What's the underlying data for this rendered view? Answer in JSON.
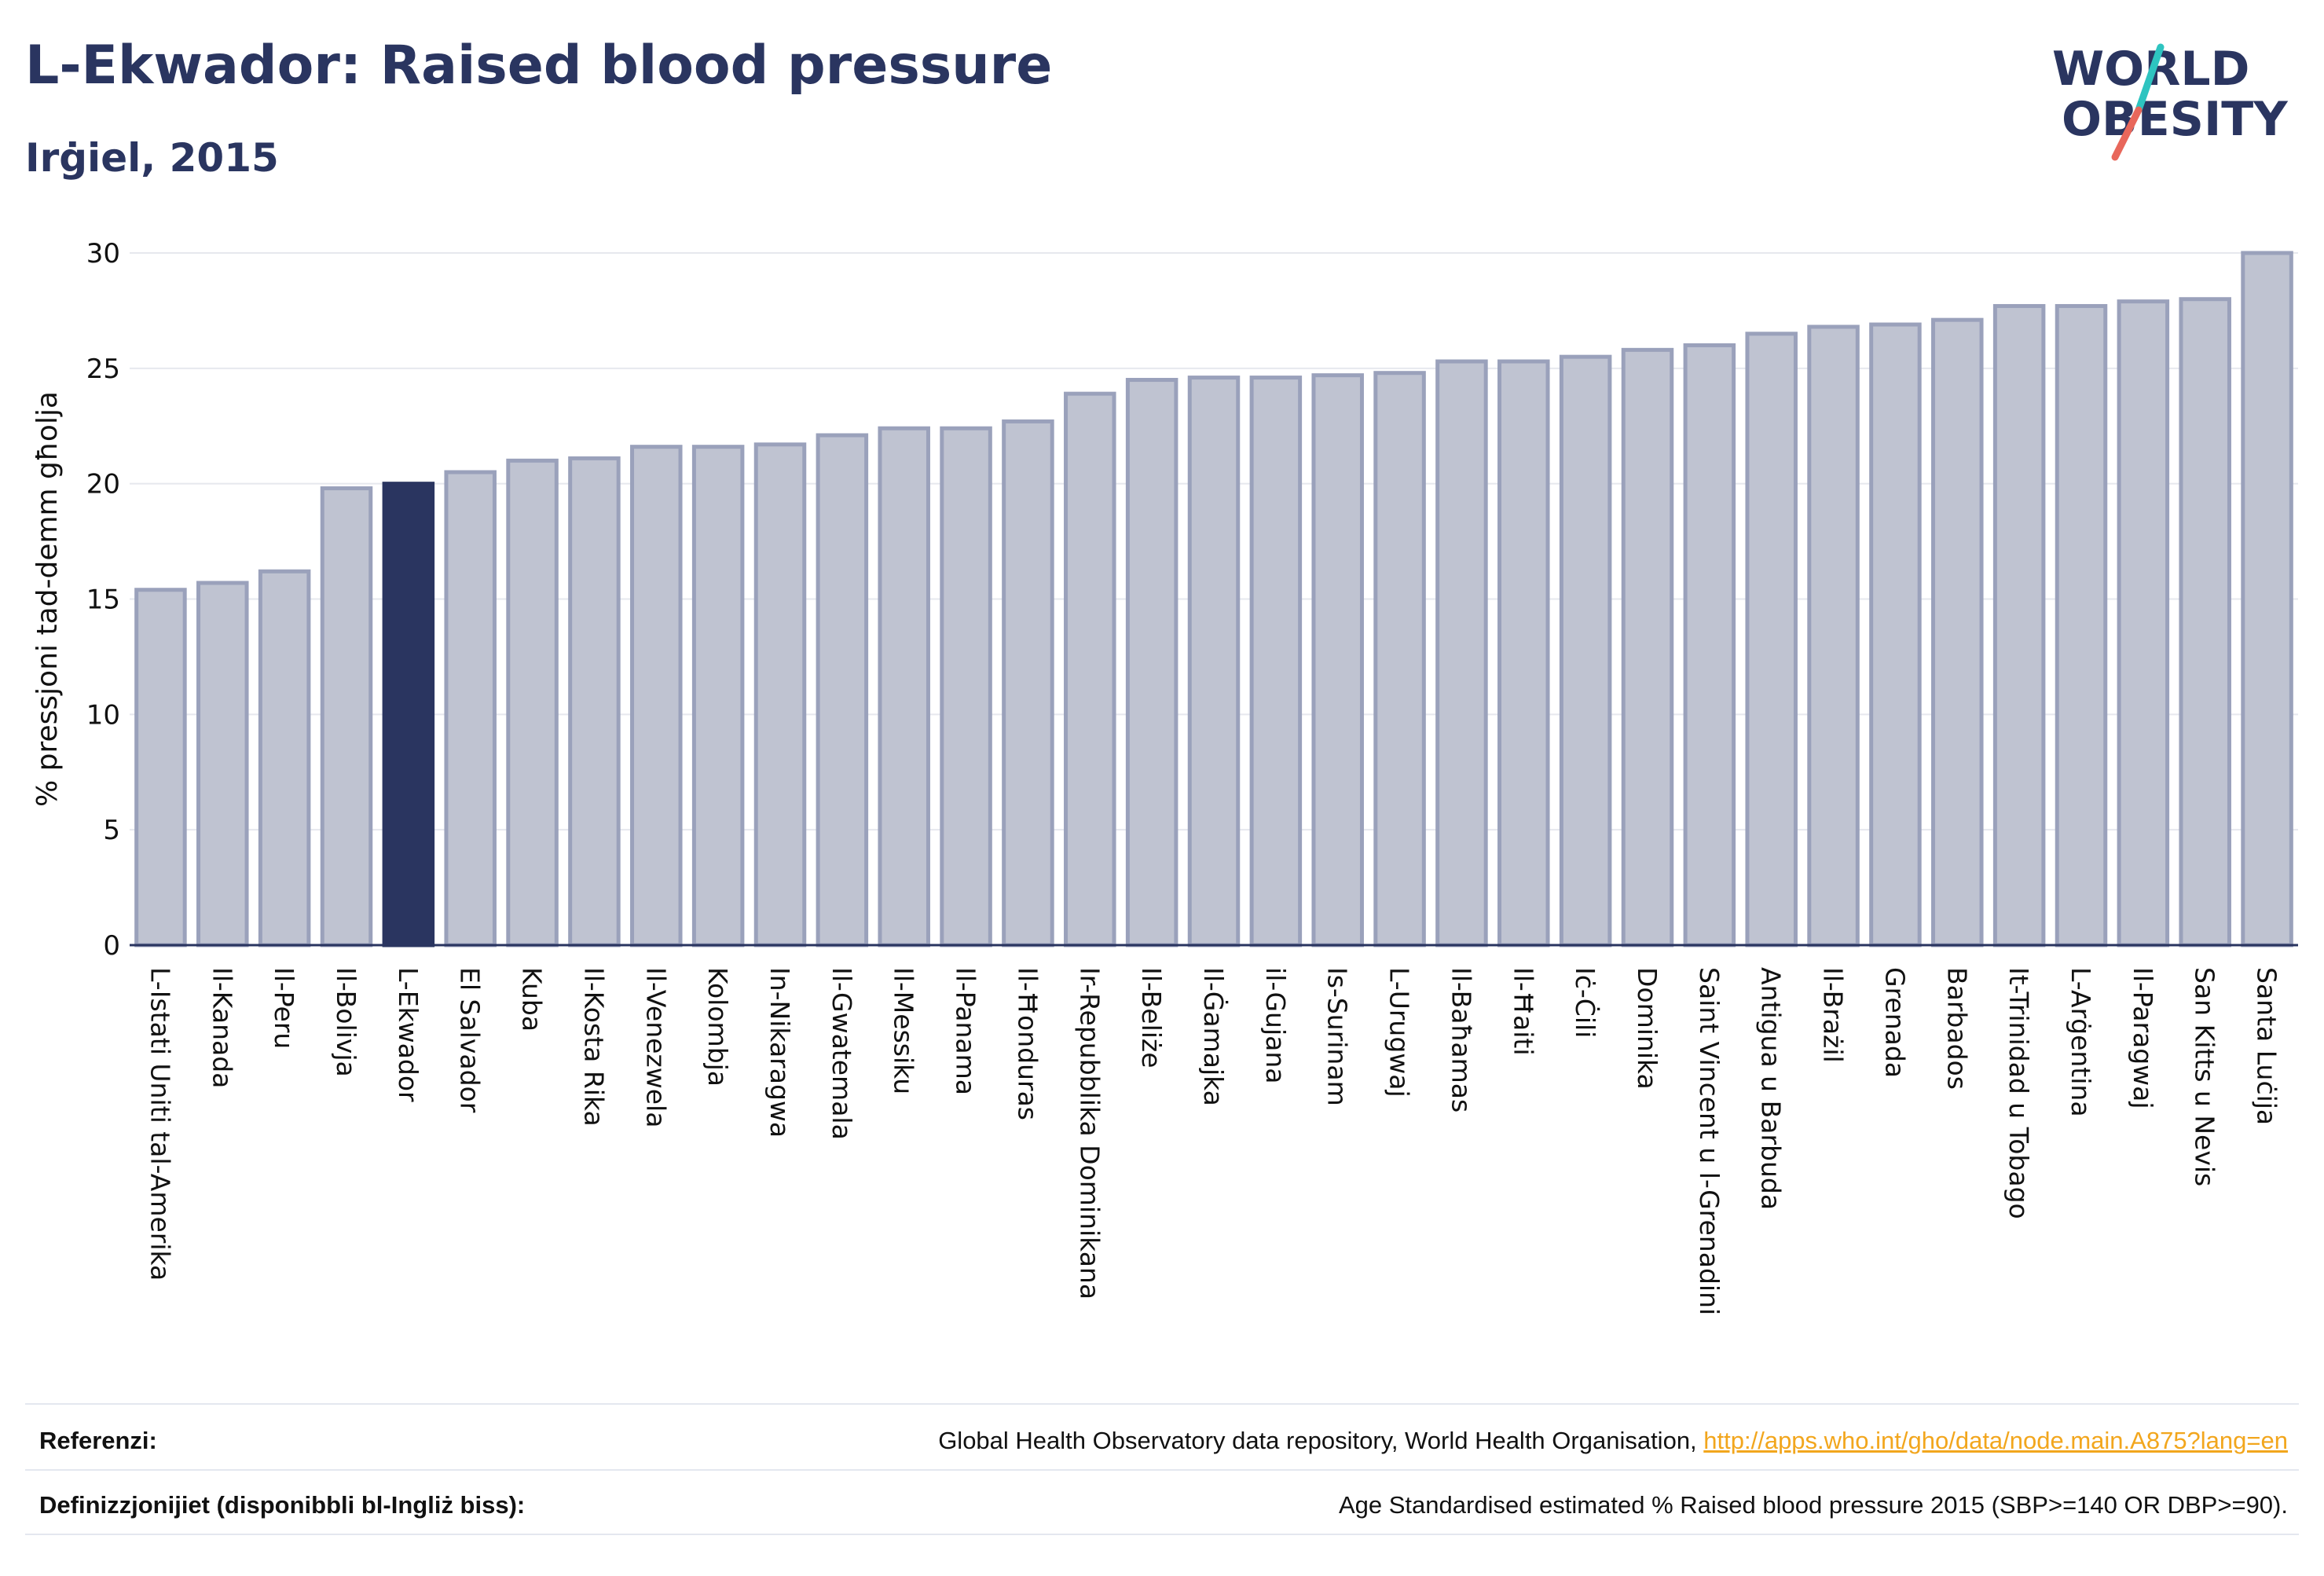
{
  "header": {
    "title": "L-Ekwador: Raised blood pressure",
    "subtitle": "Irġiel, 2015"
  },
  "logo": {
    "line1": "WORLD",
    "line2": "OBESITY",
    "slash_colors": [
      "#2ec4c0",
      "#e8675b"
    ]
  },
  "colors": {
    "bar": "#bfc3d1",
    "bar_stroke": "#9aa1bb",
    "highlight": "#2a3560",
    "grid": "#e6e8ee",
    "text": "#2a3560"
  },
  "chart_data": {
    "type": "bar",
    "title": "",
    "xlabel": "",
    "ylabel": "% pressjoni tad-demm għolja",
    "ylim": [
      0,
      30
    ],
    "yticks": [
      0,
      5,
      10,
      15,
      20,
      25,
      30
    ],
    "grid": true,
    "highlight": "L-Ekwador",
    "categories": [
      "L-Istati Uniti tal-Amerika",
      "Il-Kanada",
      "Il-Peru",
      "Il-Bolivja",
      "L-Ekwador",
      "El Salvador",
      "Kuba",
      "Il-Kosta Rika",
      "Il-Venezwela",
      "Kolombja",
      "In-Nikaragwa",
      "Il-Gwatemala",
      "Il-Messiku",
      "Il-Panama",
      "Il-Ħonduras",
      "Ir-Repubblika Dominikana",
      "Il-Beliże",
      "Il-Ġamajka",
      "il-Gujana",
      "Is-Surinam",
      "L-Urugwaj",
      "Il-Baħamas",
      "Il-Ħaiti",
      "Iċ-Ċili",
      "Dominika",
      "Saint Vincent u l-Grenadini",
      "Antigua u Barbuda",
      "Il-Brażil",
      "Grenada",
      "Barbados",
      "It-Trinidad u Tobago",
      "L-Arġentina",
      "Il-Paragwaj",
      "San Kitts u Nevis",
      "Santa Luċija"
    ],
    "values": [
      15.4,
      15.7,
      16.2,
      19.8,
      20.0,
      20.5,
      21.0,
      21.1,
      21.6,
      21.6,
      21.7,
      22.1,
      22.4,
      22.4,
      22.7,
      23.9,
      24.5,
      24.6,
      24.6,
      24.7,
      24.8,
      25.3,
      25.3,
      25.5,
      25.8,
      26.0,
      26.5,
      26.8,
      26.9,
      27.1,
      27.7,
      27.7,
      27.9,
      28.0,
      30.0
    ]
  },
  "footer": {
    "references_label": "Referenzi:",
    "references_text": "Global Health Observatory data repository, World Health Organisation, ",
    "references_link": "http://apps.who.int/gho/data/node.main.A875?lang=en",
    "definitions_label": "Definizzjonijiet (disponibbli bl-Ingliż biss):",
    "definitions_text": "Age Standardised estimated % Raised blood pressure 2015 (SBP>=140 OR DBP>=90)."
  }
}
